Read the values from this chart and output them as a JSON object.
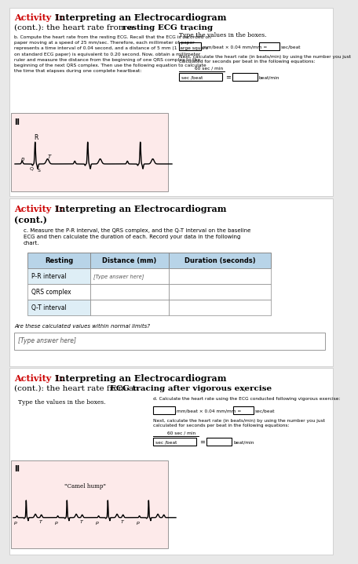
{
  "title_prefix": "Activity 1: ",
  "title_bold": "Interpreting an Electrocardiogram",
  "subtitle1": "(cont.): the heart rate from a ",
  "subtitle1_bold": "resting ECG tracing",
  "subtitle1_end": ".",
  "header_red": "#cc0000",
  "bg_outer": "#e8e8e8",
  "bg_white": "#ffffff",
  "ecg_bg": "#fdeaea",
  "grid_major": "#d48888",
  "grid_minor": "#f0bbbb",
  "table_header_bg": "#b8d4e8",
  "table_alt_bg": "#deeef6",
  "sec1_b_lines": [
    "b. Compute the heart rate from the resting ECG. Recall that the ECG is recorded on",
    "paper moving at a speed of 25 mm/sec. Therefore, each millimeter of paper",
    "represents a time interval of 0.04 second, and a distance of 5 mm (1 large square",
    "on standard ECG paper) is equivalent to 0.20 second. Now, obtain a millimeter",
    "ruler and measure the distance from the beginning of one QRS complex to the",
    "beginning of the next QRS complex. Then use the following equation to calculate",
    "the time that elapses during one complete heartbeat:"
  ],
  "type_values": "Type the values in the boxes.",
  "formula1_text": "mm/beat × 0.04 mm/mm =",
  "sec_beat": "sec/beat",
  "next_calc": "Next, calculate the heart rate (in beats/min) by using the number you just",
  "next_calc2": "calculated for seconds per beat in the following equations:",
  "sixty": "60 sec / min",
  "sec_beat_div": "sec /beat",
  "beat_min": "beat/min",
  "sec2_title2": "(cont.)",
  "sec2_c_lines": [
    "c. Measure the P-R interval, the QRS complex, and the Q-T interval on the baseline",
    "ECG and then calculate the duration of each. Record your data in the following",
    "chart."
  ],
  "tbl_headers": [
    "Resting",
    "Distance (mm)",
    "Duration (seconds)"
  ],
  "tbl_rows": [
    "P-R interval",
    "QRS complex",
    "Q-T interval"
  ],
  "tbl_first": "[Type answer here]",
  "normal_q": "Are these calculated values within normal limits?",
  "answer_here": "[Type answer here]",
  "sec3_sub1": "(cont.): the heart rate from an ",
  "sec3_sub_bold": "ECG tracing after vigorous exercise",
  "sec3_sub_end": ".",
  "sec3_type": "Type the values in the boxes.",
  "sec3_d": "d. Calculate the heart rate using the ECG conducted following vigorous exercise:",
  "camel_label": "\"Camel hump\""
}
